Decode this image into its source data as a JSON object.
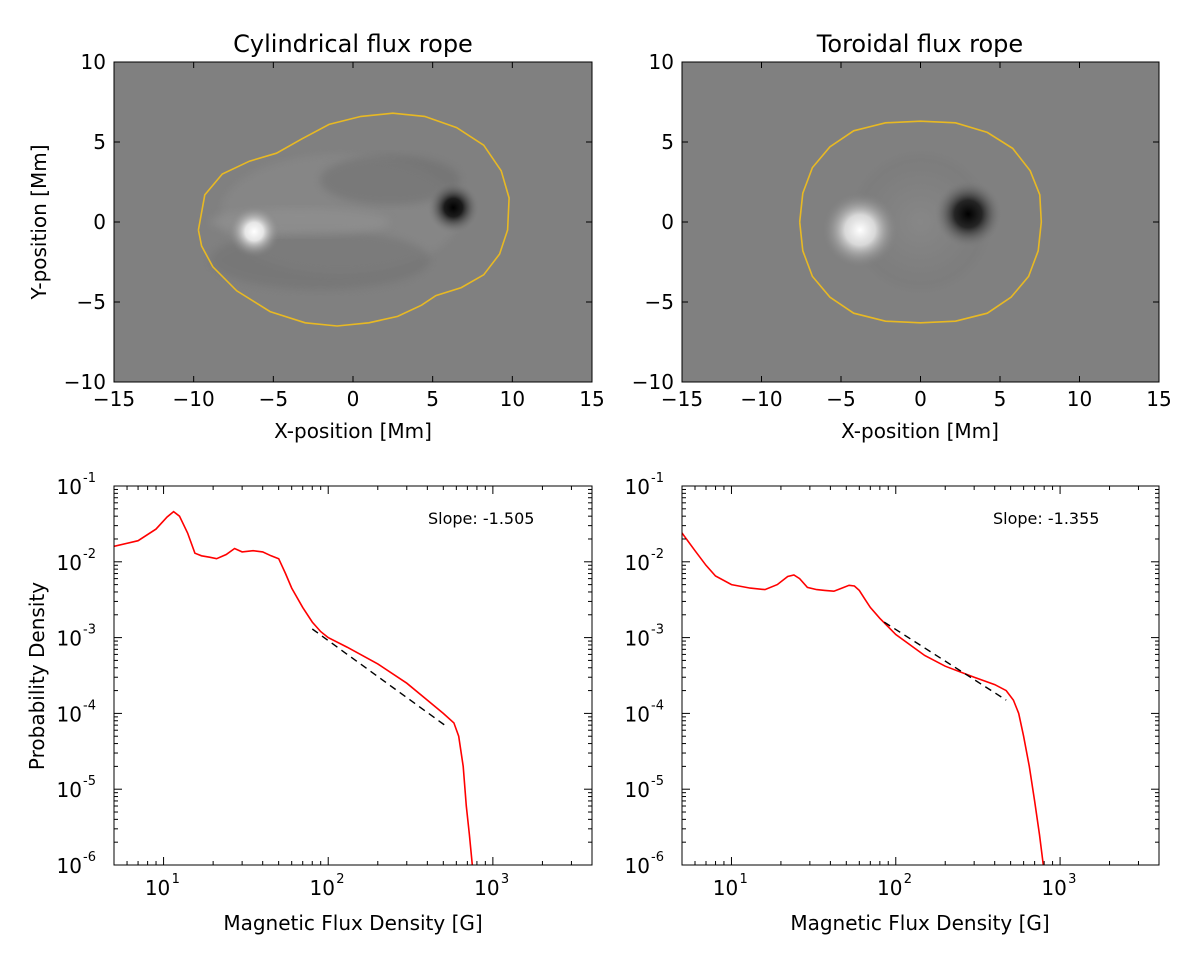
{
  "chart_data": [
    {
      "type": "heatmap",
      "title": "Cylindrical flux rope",
      "xlabel": "X-position [Mm]",
      "ylabel": "Y-position [Mm]",
      "xlim": [
        -15,
        15
      ],
      "ylim": [
        -10,
        10
      ],
      "xticks": [
        "−15",
        "−10",
        "−5",
        "0",
        "5",
        "10",
        "15"
      ],
      "yticks": [
        "−10",
        "−5",
        "0",
        "5",
        "10"
      ],
      "colormap": "gray",
      "background_color": "#808080",
      "contour_color": "#e8b923",
      "positive_pole": {
        "x": -6.2,
        "y": -0.6
      },
      "negative_pole": {
        "x": 6.3,
        "y": 0.9
      },
      "contour": [
        [
          -9.7,
          -0.5
        ],
        [
          -9.3,
          1.7
        ],
        [
          -8.2,
          3.0
        ],
        [
          -6.5,
          3.8
        ],
        [
          -4.8,
          4.3
        ],
        [
          -3.2,
          5.2
        ],
        [
          -1.5,
          6.1
        ],
        [
          0.5,
          6.6
        ],
        [
          2.5,
          6.8
        ],
        [
          4.5,
          6.6
        ],
        [
          6.5,
          5.9
        ],
        [
          8.2,
          4.8
        ],
        [
          9.3,
          3.2
        ],
        [
          9.8,
          1.5
        ],
        [
          9.7,
          -0.5
        ],
        [
          9.2,
          -2.0
        ],
        [
          8.2,
          -3.3
        ],
        [
          6.8,
          -4.1
        ],
        [
          5.2,
          -4.6
        ],
        [
          4.3,
          -5.2
        ],
        [
          2.8,
          -5.9
        ],
        [
          1.0,
          -6.3
        ],
        [
          -1.0,
          -6.5
        ],
        [
          -3.0,
          -6.3
        ],
        [
          -5.2,
          -5.6
        ],
        [
          -7.3,
          -4.3
        ],
        [
          -8.8,
          -2.8
        ],
        [
          -9.5,
          -1.5
        ],
        [
          -9.7,
          -0.5
        ]
      ]
    },
    {
      "type": "heatmap",
      "title": "Toroidal flux rope",
      "xlabel": "X-position [Mm]",
      "ylabel": "",
      "xlim": [
        -15,
        15
      ],
      "ylim": [
        -10,
        10
      ],
      "xticks": [
        "−15",
        "−10",
        "−5",
        "0",
        "5",
        "10",
        "15"
      ],
      "yticks": [
        "−10",
        "−5",
        "0",
        "5",
        "10"
      ],
      "colormap": "gray",
      "background_color": "#808080",
      "contour_color": "#e8b923",
      "positive_pole": {
        "x": -3.8,
        "y": -0.5
      },
      "negative_pole": {
        "x": 3.0,
        "y": 0.5
      },
      "contour": [
        [
          -7.6,
          0
        ],
        [
          -7.4,
          1.8
        ],
        [
          -6.8,
          3.4
        ],
        [
          -5.7,
          4.7
        ],
        [
          -4.2,
          5.7
        ],
        [
          -2.2,
          6.2
        ],
        [
          0,
          6.3
        ],
        [
          2.2,
          6.2
        ],
        [
          4.2,
          5.6
        ],
        [
          5.8,
          4.6
        ],
        [
          6.9,
          3.2
        ],
        [
          7.5,
          1.7
        ],
        [
          7.6,
          0
        ],
        [
          7.4,
          -1.8
        ],
        [
          6.8,
          -3.4
        ],
        [
          5.7,
          -4.7
        ],
        [
          4.2,
          -5.7
        ],
        [
          2.2,
          -6.2
        ],
        [
          0,
          -6.3
        ],
        [
          -2.2,
          -6.2
        ],
        [
          -4.2,
          -5.7
        ],
        [
          -5.7,
          -4.7
        ],
        [
          -6.8,
          -3.4
        ],
        [
          -7.4,
          -1.8
        ],
        [
          -7.6,
          0
        ]
      ]
    },
    {
      "type": "line",
      "title": "",
      "xlabel": "Magnetic Flux Density [G]",
      "ylabel": "Probability Density",
      "xscale": "log",
      "yscale": "log",
      "xlim": [
        5,
        4000
      ],
      "ylim": [
        1e-06,
        0.1
      ],
      "xticks": [
        {
          "base": "10",
          "exp": "1",
          "value": 10
        },
        {
          "base": "10",
          "exp": "2",
          "value": 100
        },
        {
          "base": "10",
          "exp": "3",
          "value": 1000
        }
      ],
      "yticks": [
        {
          "base": "10",
          "exp": "-6",
          "value": 1e-06
        },
        {
          "base": "10",
          "exp": "-5",
          "value": 1e-05
        },
        {
          "base": "10",
          "exp": "-4",
          "value": 0.0001
        },
        {
          "base": "10",
          "exp": "-3",
          "value": 0.001
        },
        {
          "base": "10",
          "exp": "-2",
          "value": 0.01
        },
        {
          "base": "10",
          "exp": "-1",
          "value": 0.1
        }
      ],
      "annotation": "Slope: -1.505",
      "series": [
        {
          "color": "#ff0000",
          "style": "solid",
          "x": [
            5,
            7,
            9,
            10.5,
            11.5,
            12.5,
            14,
            15.5,
            17,
            19,
            21,
            24,
            27,
            30,
            35,
            40,
            45,
            50,
            55,
            60,
            70,
            80,
            90,
            100,
            130,
            200,
            300,
            400,
            500,
            580,
            620,
            660,
            690,
            720,
            750
          ],
          "y": [
            0.016,
            0.019,
            0.027,
            0.039,
            0.046,
            0.04,
            0.024,
            0.013,
            0.012,
            0.0115,
            0.011,
            0.0125,
            0.015,
            0.0135,
            0.014,
            0.0135,
            0.012,
            0.011,
            0.007,
            0.0045,
            0.0025,
            0.0016,
            0.0012,
            0.001,
            0.00075,
            0.00045,
            0.00025,
            0.00015,
            0.0001,
            7.5e-05,
            5e-05,
            2e-05,
            6e-06,
            2.5e-06,
            1e-06
          ]
        },
        {
          "color": "#000000",
          "style": "dashed",
          "x": [
            80,
            510
          ],
          "y": [
            0.0013,
            7e-05
          ]
        }
      ]
    },
    {
      "type": "line",
      "title": "",
      "xlabel": "Magnetic Flux Density [G]",
      "ylabel": "",
      "xscale": "log",
      "yscale": "log",
      "xlim": [
        5,
        4000
      ],
      "ylim": [
        1e-06,
        0.1
      ],
      "xticks": [
        {
          "base": "10",
          "exp": "1",
          "value": 10
        },
        {
          "base": "10",
          "exp": "2",
          "value": 100
        },
        {
          "base": "10",
          "exp": "3",
          "value": 1000
        }
      ],
      "yticks": [
        {
          "base": "10",
          "exp": "-6",
          "value": 1e-06
        },
        {
          "base": "10",
          "exp": "-5",
          "value": 1e-05
        },
        {
          "base": "10",
          "exp": "-4",
          "value": 0.0001
        },
        {
          "base": "10",
          "exp": "-3",
          "value": 0.001
        },
        {
          "base": "10",
          "exp": "-2",
          "value": 0.01
        },
        {
          "base": "10",
          "exp": "-1",
          "value": 0.1
        }
      ],
      "annotation": "Slope: -1.355",
      "series": [
        {
          "color": "#ff0000",
          "style": "solid",
          "x": [
            5,
            6,
            7,
            8,
            10,
            13,
            16,
            19,
            22,
            24,
            26,
            29,
            33,
            37,
            42,
            47,
            52,
            56,
            60,
            65,
            70,
            80,
            100,
            150,
            200,
            300,
            400,
            470,
            520,
            560,
            600,
            650,
            700,
            750,
            790
          ],
          "y": [
            0.024,
            0.014,
            0.009,
            0.0065,
            0.005,
            0.0045,
            0.0043,
            0.005,
            0.0064,
            0.0067,
            0.006,
            0.0046,
            0.0043,
            0.0042,
            0.0041,
            0.0045,
            0.0049,
            0.0048,
            0.0042,
            0.0032,
            0.0025,
            0.0018,
            0.0011,
            0.00058,
            0.00042,
            0.0003,
            0.00024,
            0.0002,
            0.00015,
            0.0001,
            5e-05,
            2e-05,
            7e-06,
            2.5e-06,
            1e-06
          ]
        },
        {
          "color": "#000000",
          "style": "dashed",
          "x": [
            85,
            470
          ],
          "y": [
            0.0016,
            0.00015
          ]
        }
      ]
    }
  ]
}
